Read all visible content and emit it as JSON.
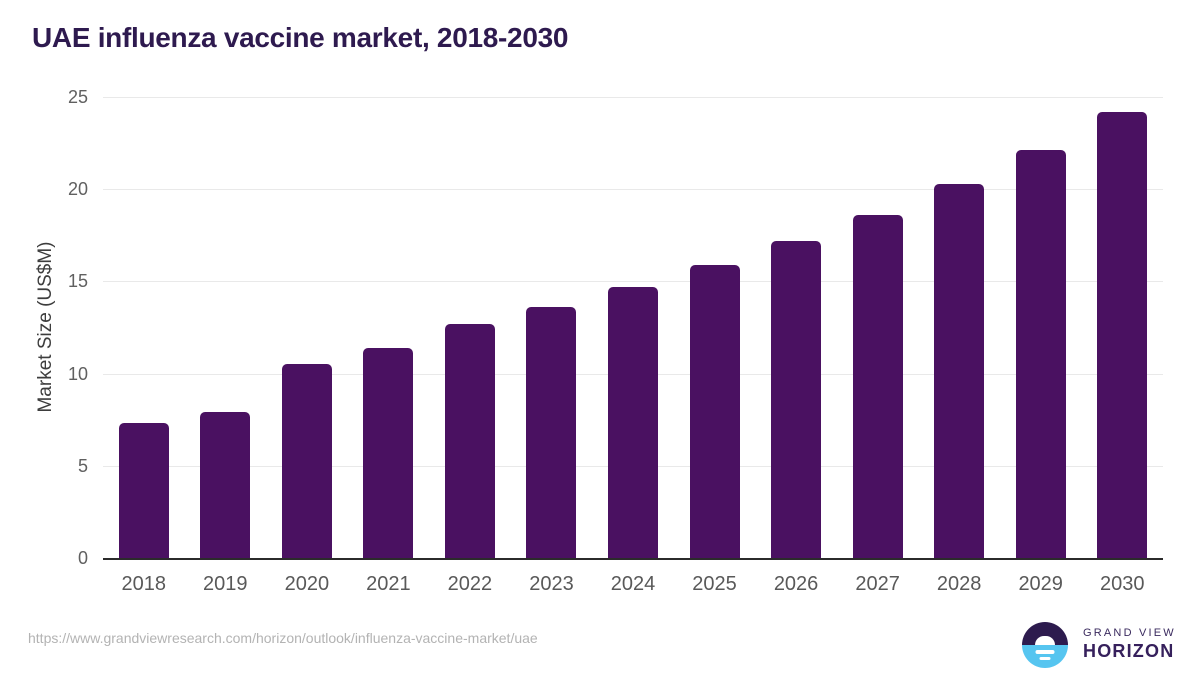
{
  "page": {
    "title": "UAE influenza vaccine market, 2018-2030"
  },
  "chart_data": {
    "type": "bar",
    "title": "UAE influenza vaccine market, 2018-2030",
    "categories": [
      "2018",
      "2019",
      "2020",
      "2021",
      "2022",
      "2023",
      "2024",
      "2025",
      "2026",
      "2027",
      "2028",
      "2029",
      "2030"
    ],
    "values": [
      7.3,
      7.9,
      10.5,
      11.4,
      12.7,
      13.6,
      14.7,
      15.9,
      17.2,
      18.6,
      20.3,
      22.1,
      24.2
    ],
    "xlabel": "",
    "ylabel": "Market Size (US$M)",
    "ylim": [
      0,
      25
    ],
    "yticks": [
      0,
      5,
      10,
      15,
      20,
      25
    ],
    "grid": true,
    "legend": false,
    "bar_color": "#4a1161"
  },
  "footer": {
    "source_url": "https://www.grandviewresearch.com/horizon/outlook/influenza-vaccine-market/uae",
    "logo": {
      "top_text": "GRAND VIEW",
      "bottom_text": "HORIZON"
    }
  },
  "colors": {
    "bar": "#4a1161",
    "title_text": "#2e1a4f",
    "axis_text": "#595959",
    "y_axis_title_text": "#3d3d3d",
    "gridline": "#e9e9e9",
    "axis_line": "#2b2b2b",
    "url_text": "#b3b3b3",
    "logo_purple": "#2d1b4e",
    "logo_blue": "#56c5f0"
  }
}
